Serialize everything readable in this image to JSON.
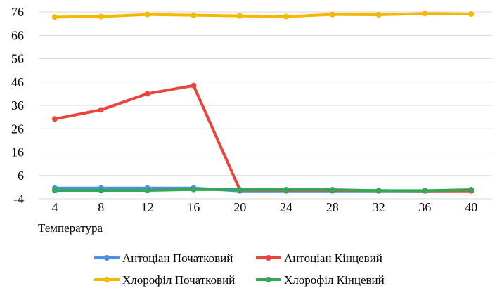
{
  "chart_data": {
    "type": "line",
    "x": [
      4,
      8,
      12,
      16,
      20,
      24,
      28,
      32,
      36,
      40
    ],
    "xlabel": "Температура",
    "ylim": [
      -4,
      76
    ],
    "yticks": [
      -4,
      6,
      16,
      26,
      36,
      46,
      56,
      66,
      76
    ],
    "grid": "horizontal",
    "legend_position": "bottom",
    "series": [
      {
        "name": "Антоціан Початковий",
        "color": "#4a8fe8",
        "values": [
          0.6,
          0.6,
          0.6,
          0.6,
          -0.6,
          -0.6,
          -0.6,
          -0.6,
          -0.6,
          -0.4
        ]
      },
      {
        "name": "Антоціан Кінцевий",
        "color": "#e8453c",
        "values": [
          30.2,
          34.1,
          41,
          44.5,
          -0.2,
          -0.3,
          -0.3,
          -0.5,
          -0.6,
          -0.6
        ]
      },
      {
        "name": "Хлорофіл Початковий",
        "color": "#f5b800",
        "values": [
          73.8,
          74,
          74.9,
          74.6,
          74.3,
          74,
          74.9,
          74.8,
          75.3,
          75.1
        ]
      },
      {
        "name": "Хлорофіл Кінцевий",
        "color": "#34a853",
        "values": [
          -0.4,
          -0.4,
          -0.4,
          0,
          -0.1,
          -0.1,
          -0.1,
          -0.5,
          -0.5,
          -0.1
        ]
      }
    ]
  }
}
